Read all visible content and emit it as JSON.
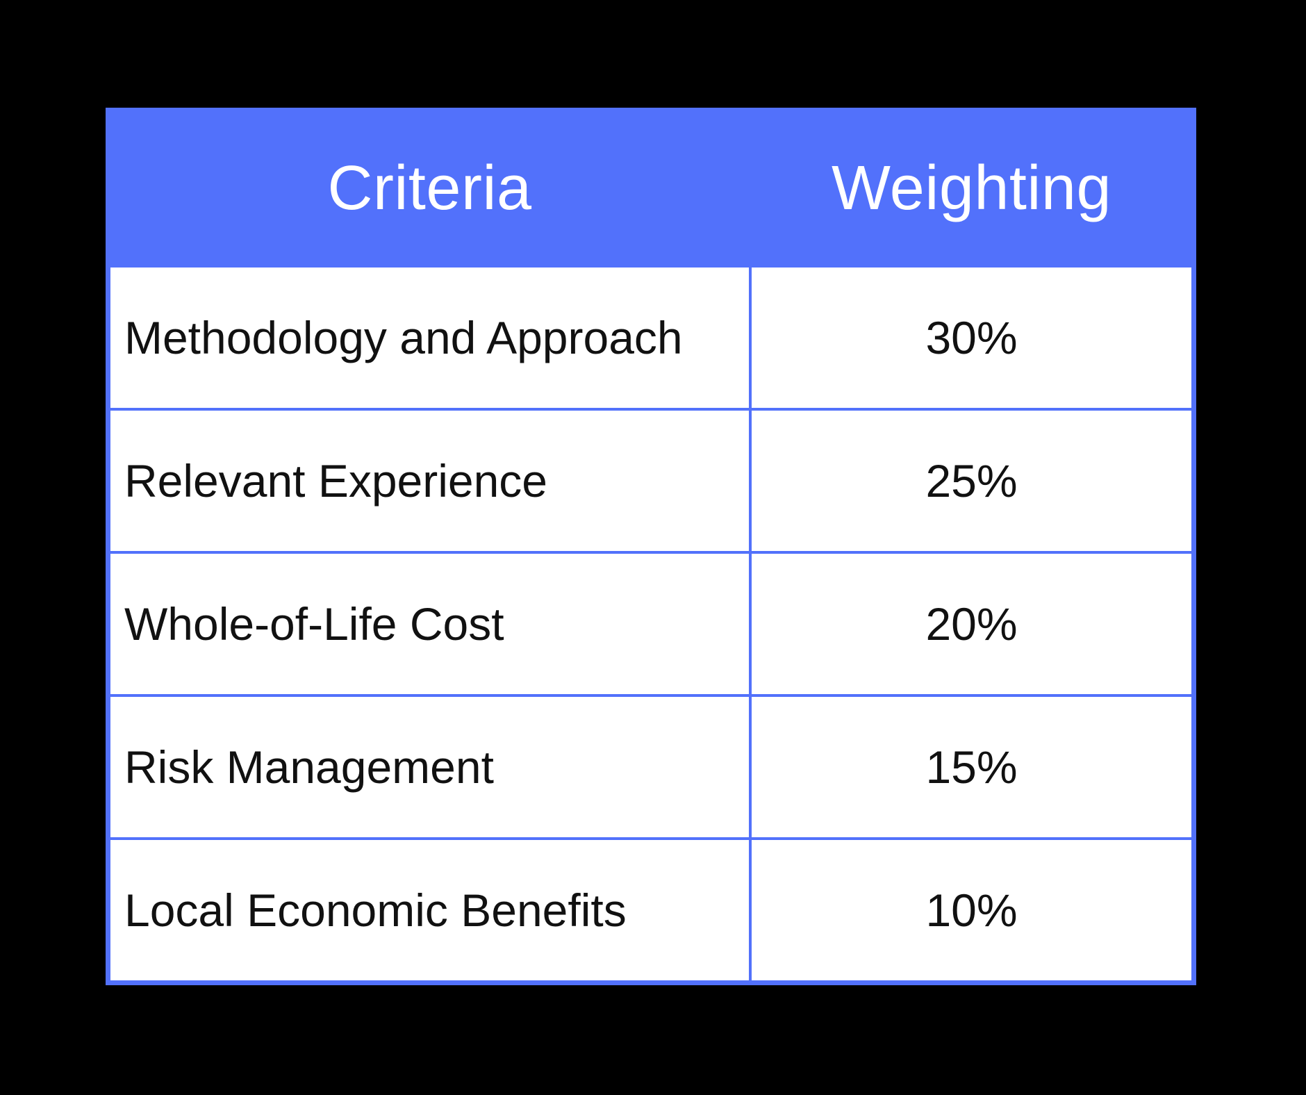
{
  "chart_data": {
    "type": "table",
    "columns": [
      "Criteria",
      "Weighting"
    ],
    "rows": [
      {
        "criteria": "Methodology and Approach",
        "weighting": "30%"
      },
      {
        "criteria": "Relevant Experience",
        "weighting": "25%"
      },
      {
        "criteria": "Whole-of-Life Cost",
        "weighting": "20%"
      },
      {
        "criteria": "Risk Management",
        "weighting": "15%"
      },
      {
        "criteria": "Local Economic Benefits",
        "weighting": "10%"
      }
    ]
  },
  "colors": {
    "canvas_background": "#000000",
    "accent_blue": "#5271fb",
    "border_blue": "#5d7af8",
    "header_text": "#ffffff",
    "body_text": "#111111"
  }
}
